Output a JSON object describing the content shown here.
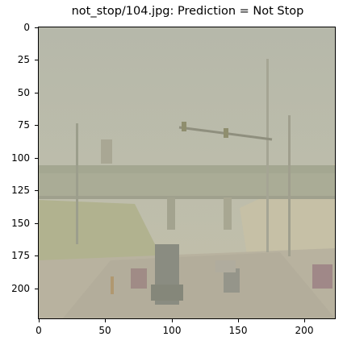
{
  "title": "not_stop/104.jpg: Prediction = Not Stop",
  "image": {
    "description_icon": "foggy-road-scene-image",
    "palette": {
      "sky": "#b7b8a8",
      "haze": "#c4c2ad",
      "road": "#b4ae9d",
      "grass": "#aeb08e"
    }
  },
  "axes": {
    "yticks": [
      "0",
      "25",
      "50",
      "75",
      "100",
      "125",
      "150",
      "175",
      "200"
    ],
    "xticks": [
      "0",
      "50",
      "100",
      "150",
      "200"
    ],
    "ytick_values": [
      0,
      25,
      50,
      75,
      100,
      125,
      150,
      175,
      200
    ],
    "xtick_values": [
      0,
      50,
      100,
      150,
      200
    ],
    "xlim": [
      -0.5,
      223.5
    ],
    "ylim": [
      223.5,
      -0.5
    ]
  }
}
